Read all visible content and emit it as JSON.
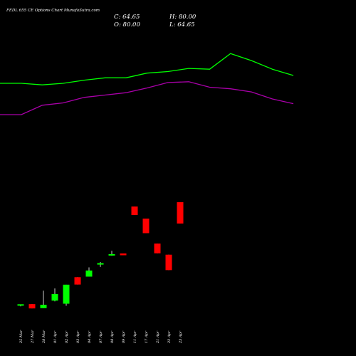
{
  "title": "FEDL 655 CE Options  Chart MunafaSutra.com",
  "ohlc": {
    "c_label": "C: 64.65",
    "h_label": "H: 80.00",
    "o_label": "O: 80.00",
    "l_label": "L: 64.65"
  },
  "colors": {
    "background": "#000000",
    "up": "#00ff00",
    "down": "#ff0000",
    "upper_band": "#00ff00",
    "lower_band": "#aa00aa",
    "text": "#ffffff"
  },
  "chart_data": {
    "type": "candlestick",
    "grid": false,
    "legend": "none",
    "price_ylim": [
      0,
      100
    ],
    "categories": [
      "25 Mar",
      "27 Mar",
      "28 Mar",
      "01 Apr",
      "02 Apr",
      "03 Apr",
      "04 Apr",
      "07 Apr",
      "08 Apr",
      "09 Apr",
      "11 Apr",
      "17 Apr",
      "21 Apr",
      "22 Apr",
      "23 Apr"
    ],
    "candles": [
      {
        "x": "25 Mar",
        "open": 5.6,
        "high": 5.8,
        "low": 5.0,
        "close": 6.5
      },
      {
        "x": "27 Mar",
        "open": 6.6,
        "high": 6.6,
        "low": 3.5,
        "close": 3.5
      },
      {
        "x": "28 Mar",
        "open": 3.7,
        "high": 16.3,
        "low": 3.7,
        "close": 6.1
      },
      {
        "x": "01 Apr",
        "open": 9.1,
        "high": 17.9,
        "low": 8.6,
        "close": 13.9
      },
      {
        "x": "02 Apr",
        "open": 6.9,
        "high": 20.6,
        "low": 5.4,
        "close": 20.6
      },
      {
        "x": "03 Apr",
        "open": 26.0,
        "high": 26.0,
        "low": 20.7,
        "close": 20.7
      },
      {
        "x": "04 Apr",
        "open": 26.4,
        "high": 33.1,
        "low": 26.4,
        "close": 30.8
      },
      {
        "x": "07 Apr",
        "open": 35.6,
        "high": 36.9,
        "low": 33.4,
        "close": 36.1
      },
      {
        "x": "08 Apr",
        "open": 42.1,
        "high": 45.0,
        "low": 41.5,
        "close": 42.6
      },
      {
        "x": "09 Apr",
        "open": 43.1,
        "high": 43.1,
        "low": 41.8,
        "close": 41.8
      },
      {
        "x": "11 Apr",
        "open": 76.9,
        "high": 76.9,
        "low": 70.8,
        "close": 70.8
      },
      {
        "x": "17 Apr",
        "open": 68.2,
        "high": 68.2,
        "low": 57.7,
        "close": 57.7
      },
      {
        "x": "21 Apr",
        "open": 50.2,
        "high": 50.2,
        "low": 43.2,
        "close": 43.2
      },
      {
        "x": "22 Apr",
        "open": 42.2,
        "high": 42.2,
        "low": 31.1,
        "close": 31.1
      },
      {
        "x": "23 Apr",
        "open": 80.0,
        "high": 80.0,
        "low": 64.65,
        "close": 64.65
      }
    ],
    "series": [
      {
        "role": "upper-band",
        "values": [
          130,
          130,
          128,
          130,
          134,
          137,
          137,
          143,
          145,
          149,
          148,
          168,
          159,
          148,
          140
        ]
      },
      {
        "role": "lower-band",
        "values": [
          90,
          90,
          102,
          105,
          112,
          115,
          118,
          124,
          131,
          132,
          125,
          123,
          119,
          110,
          104
        ]
      }
    ],
    "band_ylim": [
      0,
      200
    ]
  }
}
